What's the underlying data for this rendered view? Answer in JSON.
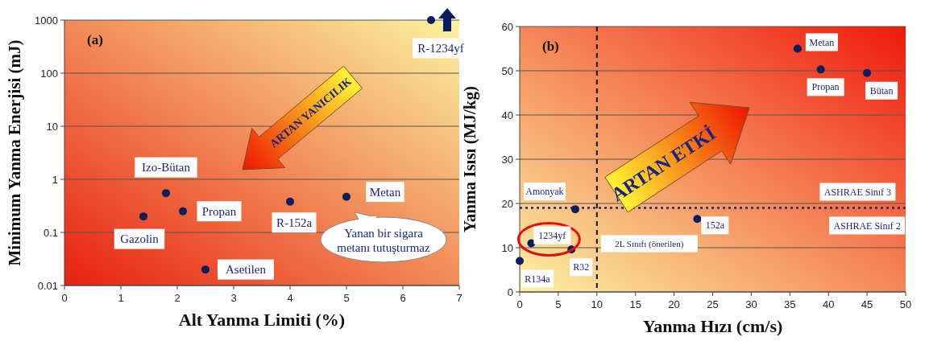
{
  "chart_data": [
    {
      "type": "scatter",
      "title": "(a)",
      "xlabel": "Alt Yanma Limiti (%)",
      "ylabel": "Minimum Yanma Enerjisi (mJ)",
      "log": "y",
      "grid": "y",
      "marker": "circle",
      "xlim": [
        0,
        7
      ],
      "ylim": [
        0.01,
        1000
      ],
      "xticks": [
        0,
        1,
        2,
        3,
        4,
        5,
        6,
        7
      ],
      "yticks": [
        0.01,
        0.1,
        1,
        10,
        100,
        1000
      ],
      "series": [
        {
          "color": "#0b1f5e",
          "x": [
            1.4,
            1.8,
            2.1,
            2.5,
            4.0,
            5.0,
            6.5
          ],
          "values": [
            0.2,
            0.55,
            0.25,
            0.02,
            0.38,
            0.47,
            1000
          ]
        }
      ],
      "annotations": [
        {
          "text": "Gazolin",
          "x": 1.4,
          "y": 0.2
        },
        {
          "text": "Izo-Bütan",
          "x": 1.8,
          "y": 0.55
        },
        {
          "text": "Propan",
          "x": 2.1,
          "y": 0.25
        },
        {
          "text": "Asetilen",
          "x": 2.5,
          "y": 0.02
        },
        {
          "text": "R-152a",
          "x": 4.0,
          "y": 0.38
        },
        {
          "text": "Metan",
          "x": 5.0,
          "y": 0.47
        },
        {
          "text": "R-1234yf",
          "x": 6.5,
          "y": 1000
        },
        "ARTAN YANICILIK",
        "Yanan bir sigara metanı tutuşturmaz"
      ]
    },
    {
      "type": "scatter",
      "title": "(b)",
      "xlabel": "Yanma Hızı (cm/s)",
      "ylabel": "Yanma Isısı (MJ/kg)",
      "grid": "y",
      "marker": "circle",
      "xlim": [
        0,
        50
      ],
      "ylim": [
        0,
        60
      ],
      "xticks": [
        0,
        5,
        10,
        15,
        20,
        25,
        30,
        35,
        40,
        45,
        50
      ],
      "yticks": [
        0,
        10,
        20,
        30,
        40,
        50,
        60
      ],
      "series": [
        {
          "color": "#0b1f5e",
          "x": [
            0,
            1.5,
            6.7,
            7.2,
            23,
            36,
            39,
            45
          ],
          "values": [
            7,
            11,
            9.6,
            18.7,
            16.5,
            55,
            50.3,
            49.5
          ]
        }
      ],
      "ref_lines": [
        {
          "axis": "y",
          "value": 19,
          "label": "ASHRAE Sinıf 3",
          "line_style": "dotted",
          "color": "#1a237e"
        },
        {
          "axis": "x",
          "value": 10,
          "label": "2L Sınıfı (önerilen)",
          "line_style": "dashed",
          "color": "#111111"
        }
      ],
      "annotations": [
        {
          "text": "R134a",
          "x": 0,
          "y": 7
        },
        {
          "text": "1234yf",
          "x": 1.5,
          "y": 11
        },
        {
          "text": "R32",
          "x": 6.7,
          "y": 9.6
        },
        {
          "text": "Amonyak",
          "x": 7.2,
          "y": 18.7
        },
        {
          "text": "152a",
          "x": 23,
          "y": 16.5
        },
        {
          "text": "Metan",
          "x": 36,
          "y": 55
        },
        {
          "text": "Propan",
          "x": 39,
          "y": 50.3
        },
        {
          "text": "Bütan",
          "x": 45,
          "y": 49.5
        },
        {
          "text": "ASHRAE Sinıf 2",
          "x": 45,
          "y": 19
        },
        "ARTAN ETKİ"
      ]
    }
  ]
}
